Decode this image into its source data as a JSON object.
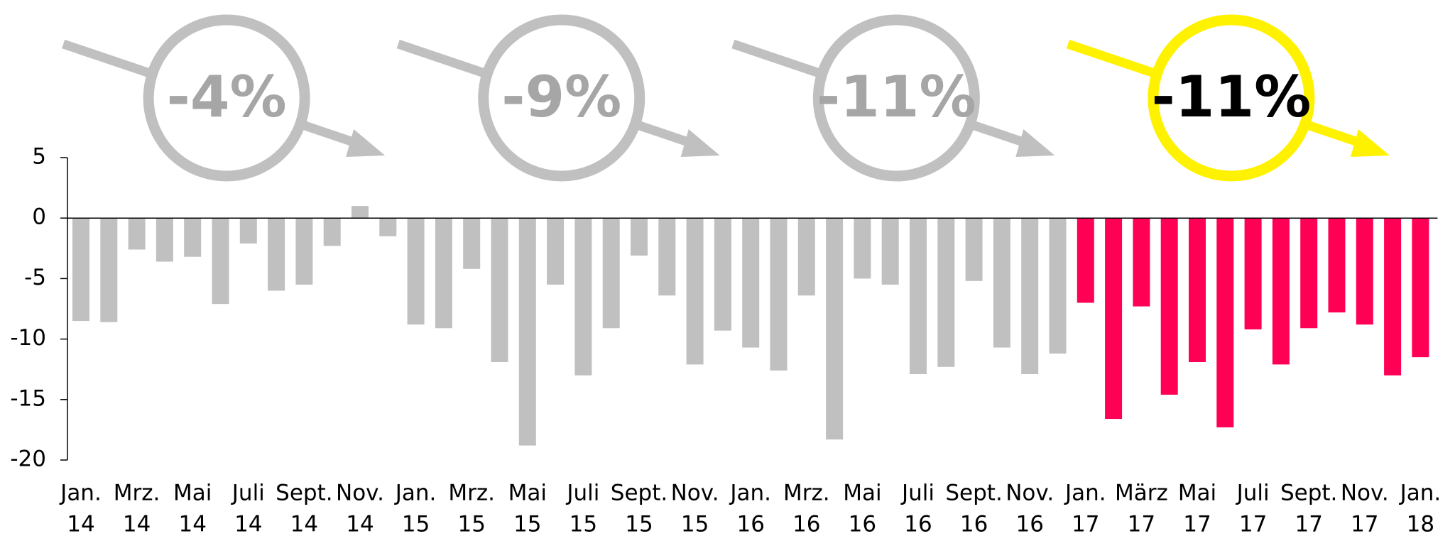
{
  "chart_data": {
    "type": "bar",
    "categories": [
      "Jan.",
      null,
      "Mrz.",
      null,
      "Mai",
      null,
      "Juli",
      null,
      "Sept.",
      null,
      "Nov.",
      null,
      "Jan.",
      null,
      "Mrz.",
      null,
      "Mai",
      null,
      "Juli",
      null,
      "Sept.",
      null,
      "Nov.",
      null,
      "Jan.",
      null,
      "Mrz.",
      null,
      "Mai",
      null,
      "Juli",
      null,
      "Sept.",
      null,
      "Nov.",
      null,
      "Jan.",
      null,
      "März",
      null,
      "Mai",
      null,
      "Juli",
      null,
      "Sept.",
      null,
      "Nov.",
      null,
      "Jan."
    ],
    "category_years": [
      "14",
      null,
      "14",
      null,
      "14",
      null,
      "14",
      null,
      "14",
      null,
      "14",
      null,
      "15",
      null,
      "15",
      null,
      "15",
      null,
      "15",
      null,
      "15",
      null,
      "15",
      null,
      "16",
      null,
      "16",
      null,
      "16",
      null,
      "16",
      null,
      "16",
      null,
      "16",
      null,
      "17",
      null,
      "17",
      null,
      "17",
      null,
      "17",
      null,
      "17",
      null,
      "17",
      null,
      "18"
    ],
    "values": [
      -8.5,
      -8.6,
      -2.6,
      -3.6,
      -3.2,
      -7.1,
      -2.1,
      -6,
      -5.5,
      -2.3,
      1,
      -1.5,
      -8.8,
      -9.1,
      -4.2,
      -11.9,
      -18.8,
      -5.5,
      -13,
      -9.1,
      -3.1,
      -6.4,
      -12.1,
      -9.3,
      -10.7,
      -12.6,
      -6.4,
      -18.3,
      -5,
      -5.5,
      -12.9,
      -12.3,
      -5.2,
      -10.7,
      -12.9,
      -11.2,
      -7,
      -16.6,
      -7.3,
      -14.6,
      -11.9,
      -17.3,
      -9.2,
      -12.1,
      -9.1,
      -7.8,
      -8.8,
      -13,
      -11.5
    ],
    "colors": [
      "#c0c0c0",
      "#c0c0c0",
      "#c0c0c0",
      "#c0c0c0",
      "#c0c0c0",
      "#c0c0c0",
      "#c0c0c0",
      "#c0c0c0",
      "#c0c0c0",
      "#c0c0c0",
      "#c0c0c0",
      "#c0c0c0",
      "#c0c0c0",
      "#c0c0c0",
      "#c0c0c0",
      "#c0c0c0",
      "#c0c0c0",
      "#c0c0c0",
      "#c0c0c0",
      "#c0c0c0",
      "#c0c0c0",
      "#c0c0c0",
      "#c0c0c0",
      "#c0c0c0",
      "#c0c0c0",
      "#c0c0c0",
      "#c0c0c0",
      "#c0c0c0",
      "#c0c0c0",
      "#c0c0c0",
      "#c0c0c0",
      "#c0c0c0",
      "#c0c0c0",
      "#c0c0c0",
      "#c0c0c0",
      "#c0c0c0",
      "#ff0055",
      "#ff0055",
      "#ff0055",
      "#ff0055",
      "#ff0055",
      "#ff0055",
      "#ff0055",
      "#ff0055",
      "#ff0055",
      "#ff0055",
      "#ff0055",
      "#ff0055",
      "#ff0055"
    ],
    "ylim": [
      -20,
      5
    ],
    "yticks": [
      5,
      0,
      -5,
      -10,
      -15,
      -20
    ],
    "annotations": [
      {
        "label": "-4%",
        "color": "#c0c0c0",
        "text_color": "#a6a6a6"
      },
      {
        "label": "-9%",
        "color": "#c0c0c0",
        "text_color": "#a6a6a6"
      },
      {
        "label": "-11%",
        "color": "#c0c0c0",
        "text_color": "#a6a6a6"
      },
      {
        "label": "-11%",
        "color": "#fff200",
        "text_color": "#000000"
      }
    ]
  }
}
